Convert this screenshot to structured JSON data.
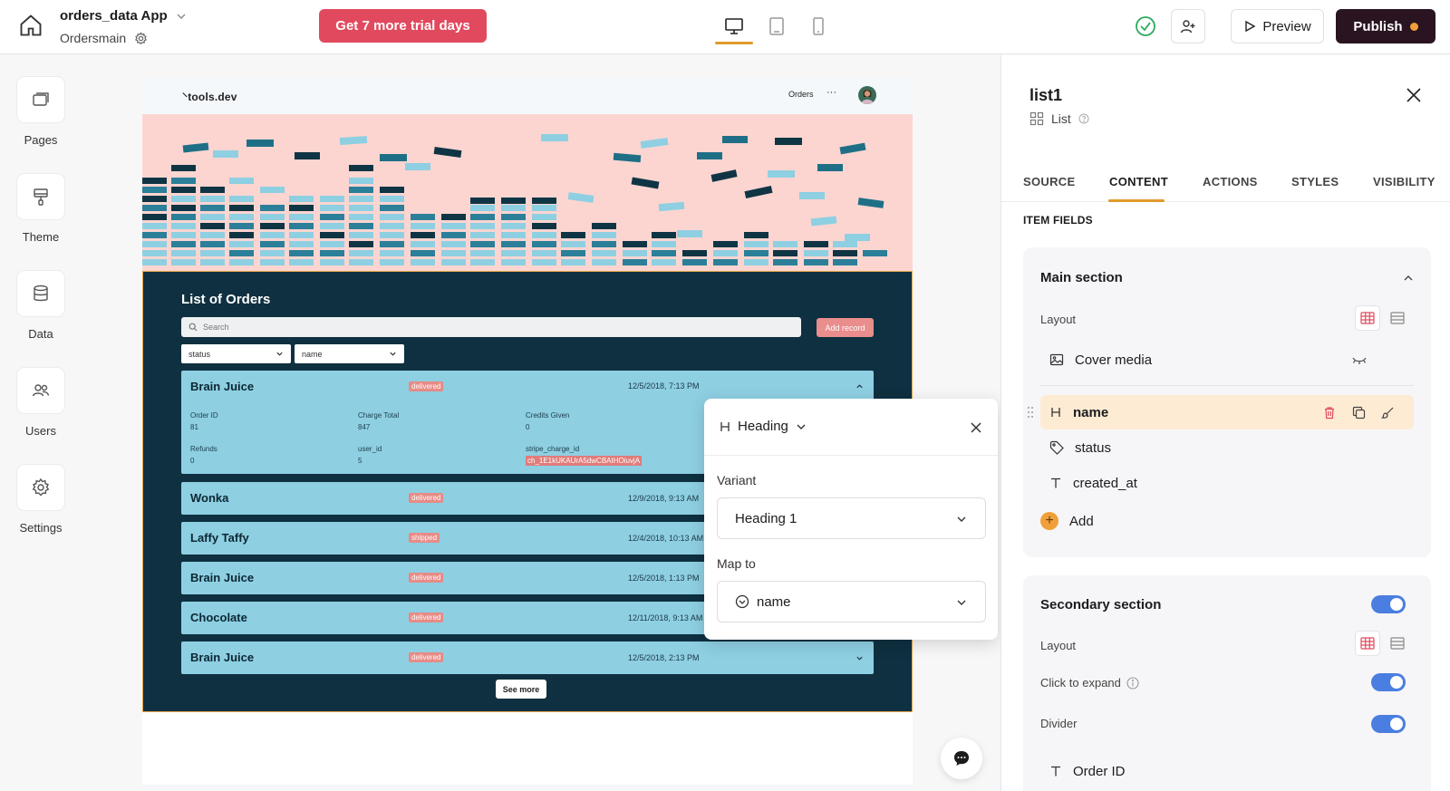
{
  "topbar": {
    "app_name": "orders_data App",
    "page_name": "Ordersmain",
    "trial_label": "Get 7 more trial days",
    "preview_label": "Preview",
    "publish_label": "Publish"
  },
  "sidebar": {
    "items": [
      {
        "label": "Pages",
        "icon": "pages-icon"
      },
      {
        "label": "Theme",
        "icon": "paintbrush-icon"
      },
      {
        "label": "Data",
        "icon": "database-icon"
      },
      {
        "label": "Users",
        "icon": "users-icon"
      },
      {
        "label": "Settings",
        "icon": "gear-icon"
      }
    ]
  },
  "preview": {
    "logo": "⸌tools.dev",
    "nav_orders": "Orders",
    "nav_more": "···",
    "list_title": "List of Orders",
    "search_placeholder": "Search",
    "add_record": "Add record",
    "filters": [
      "status",
      "name"
    ],
    "see_more": "See more",
    "expanded_fields": [
      {
        "label": "Order ID",
        "value": "81"
      },
      {
        "label": "Charge Total",
        "value": "847"
      },
      {
        "label": "Credits Given",
        "value": "0"
      },
      {
        "label": "Refunds",
        "value": "0"
      },
      {
        "label": "user_id",
        "value": "5"
      },
      {
        "label": "stripe_charge_id",
        "value": "ch_1E1kUKAUrA5dwCBAIHOiuvjA"
      }
    ],
    "rows": [
      {
        "name": "Brain Juice",
        "status": "delivered",
        "date": "12/5/2018, 7:13 PM"
      },
      {
        "name": "Wonka",
        "status": "delivered",
        "date": "12/9/2018, 9:13 AM"
      },
      {
        "name": "Laffy Taffy",
        "status": "shipped",
        "date": "12/4/2018, 10:13 AM"
      },
      {
        "name": "Brain Juice",
        "status": "delivered",
        "date": "12/5/2018, 1:13 PM"
      },
      {
        "name": "Chocolate",
        "status": "delivered",
        "date": "12/11/2018, 9:13 AM"
      },
      {
        "name": "Brain Juice",
        "status": "delivered",
        "date": "12/5/2018, 2:13 PM"
      }
    ]
  },
  "popover": {
    "type_label": "Heading",
    "variant_label": "Variant",
    "variant_value": "Heading 1",
    "map_label": "Map to",
    "map_value": "name"
  },
  "panel": {
    "title": "list1",
    "subtitle": "List",
    "tabs": [
      "SOURCE",
      "CONTENT",
      "ACTIONS",
      "STYLES",
      "VISIBILITY"
    ],
    "active_tab": "CONTENT",
    "item_fields_label": "ITEM FIELDS",
    "main_section": {
      "title": "Main section",
      "layout_label": "Layout",
      "cover_media": "Cover media",
      "fields": [
        "name",
        "status",
        "created_at"
      ],
      "add_label": "Add"
    },
    "secondary_section": {
      "title": "Secondary section",
      "layout_label": "Layout",
      "click_to_expand": "Click to expand",
      "divider": "Divider",
      "first_field": "Order ID"
    }
  },
  "colors": {
    "accent": "#e09a2b",
    "trial": "#e14a5e",
    "publish": "#2a1421",
    "list_bg": "#0f3040",
    "row_bg": "#8ecfe2",
    "hero_bg": "#fcd5d1",
    "toggle": "#4a7ee0"
  }
}
